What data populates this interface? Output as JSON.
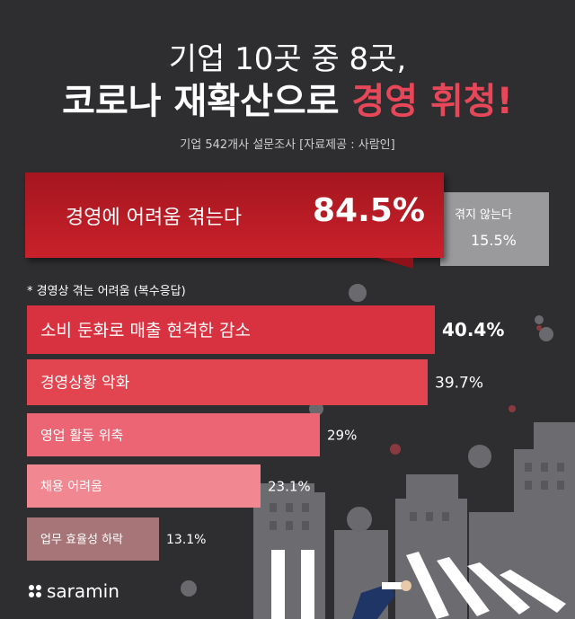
{
  "header": {
    "title_line1": "기업 10곳 중 8곳,",
    "title_line2_main": "코로나 재확산으로 ",
    "title_line2_accent": "경영 휘청!",
    "source": "기업 542개사 설문조사 [자료제공 : 사람인]"
  },
  "summary": {
    "yes_label": "경영에 어려움 겪는다",
    "yes_value": "84.5%",
    "no_label": "겪지 않는다",
    "no_value": "15.5%"
  },
  "note": "* 경영상 겪는 어려움 (복수응답)",
  "chart_data": {
    "type": "bar",
    "orientation": "horizontal",
    "categories": [
      "소비 둔화로 매출 현격한 감소",
      "경영상황 악화",
      "영업 활동 위축",
      "채용 어려움",
      "업무 효율성 하락"
    ],
    "values": [
      40.4,
      39.7,
      29,
      23.1,
      13.1
    ],
    "value_labels": [
      "40.4%",
      "39.7%",
      "29%",
      "23.1%",
      "13.1%"
    ],
    "colors": [
      "#d8313f",
      "#e24550",
      "#ec6574",
      "#f08791",
      "#a77478"
    ],
    "xlim": [
      0,
      40.4
    ]
  },
  "brand": {
    "logo_text": "saramin"
  }
}
